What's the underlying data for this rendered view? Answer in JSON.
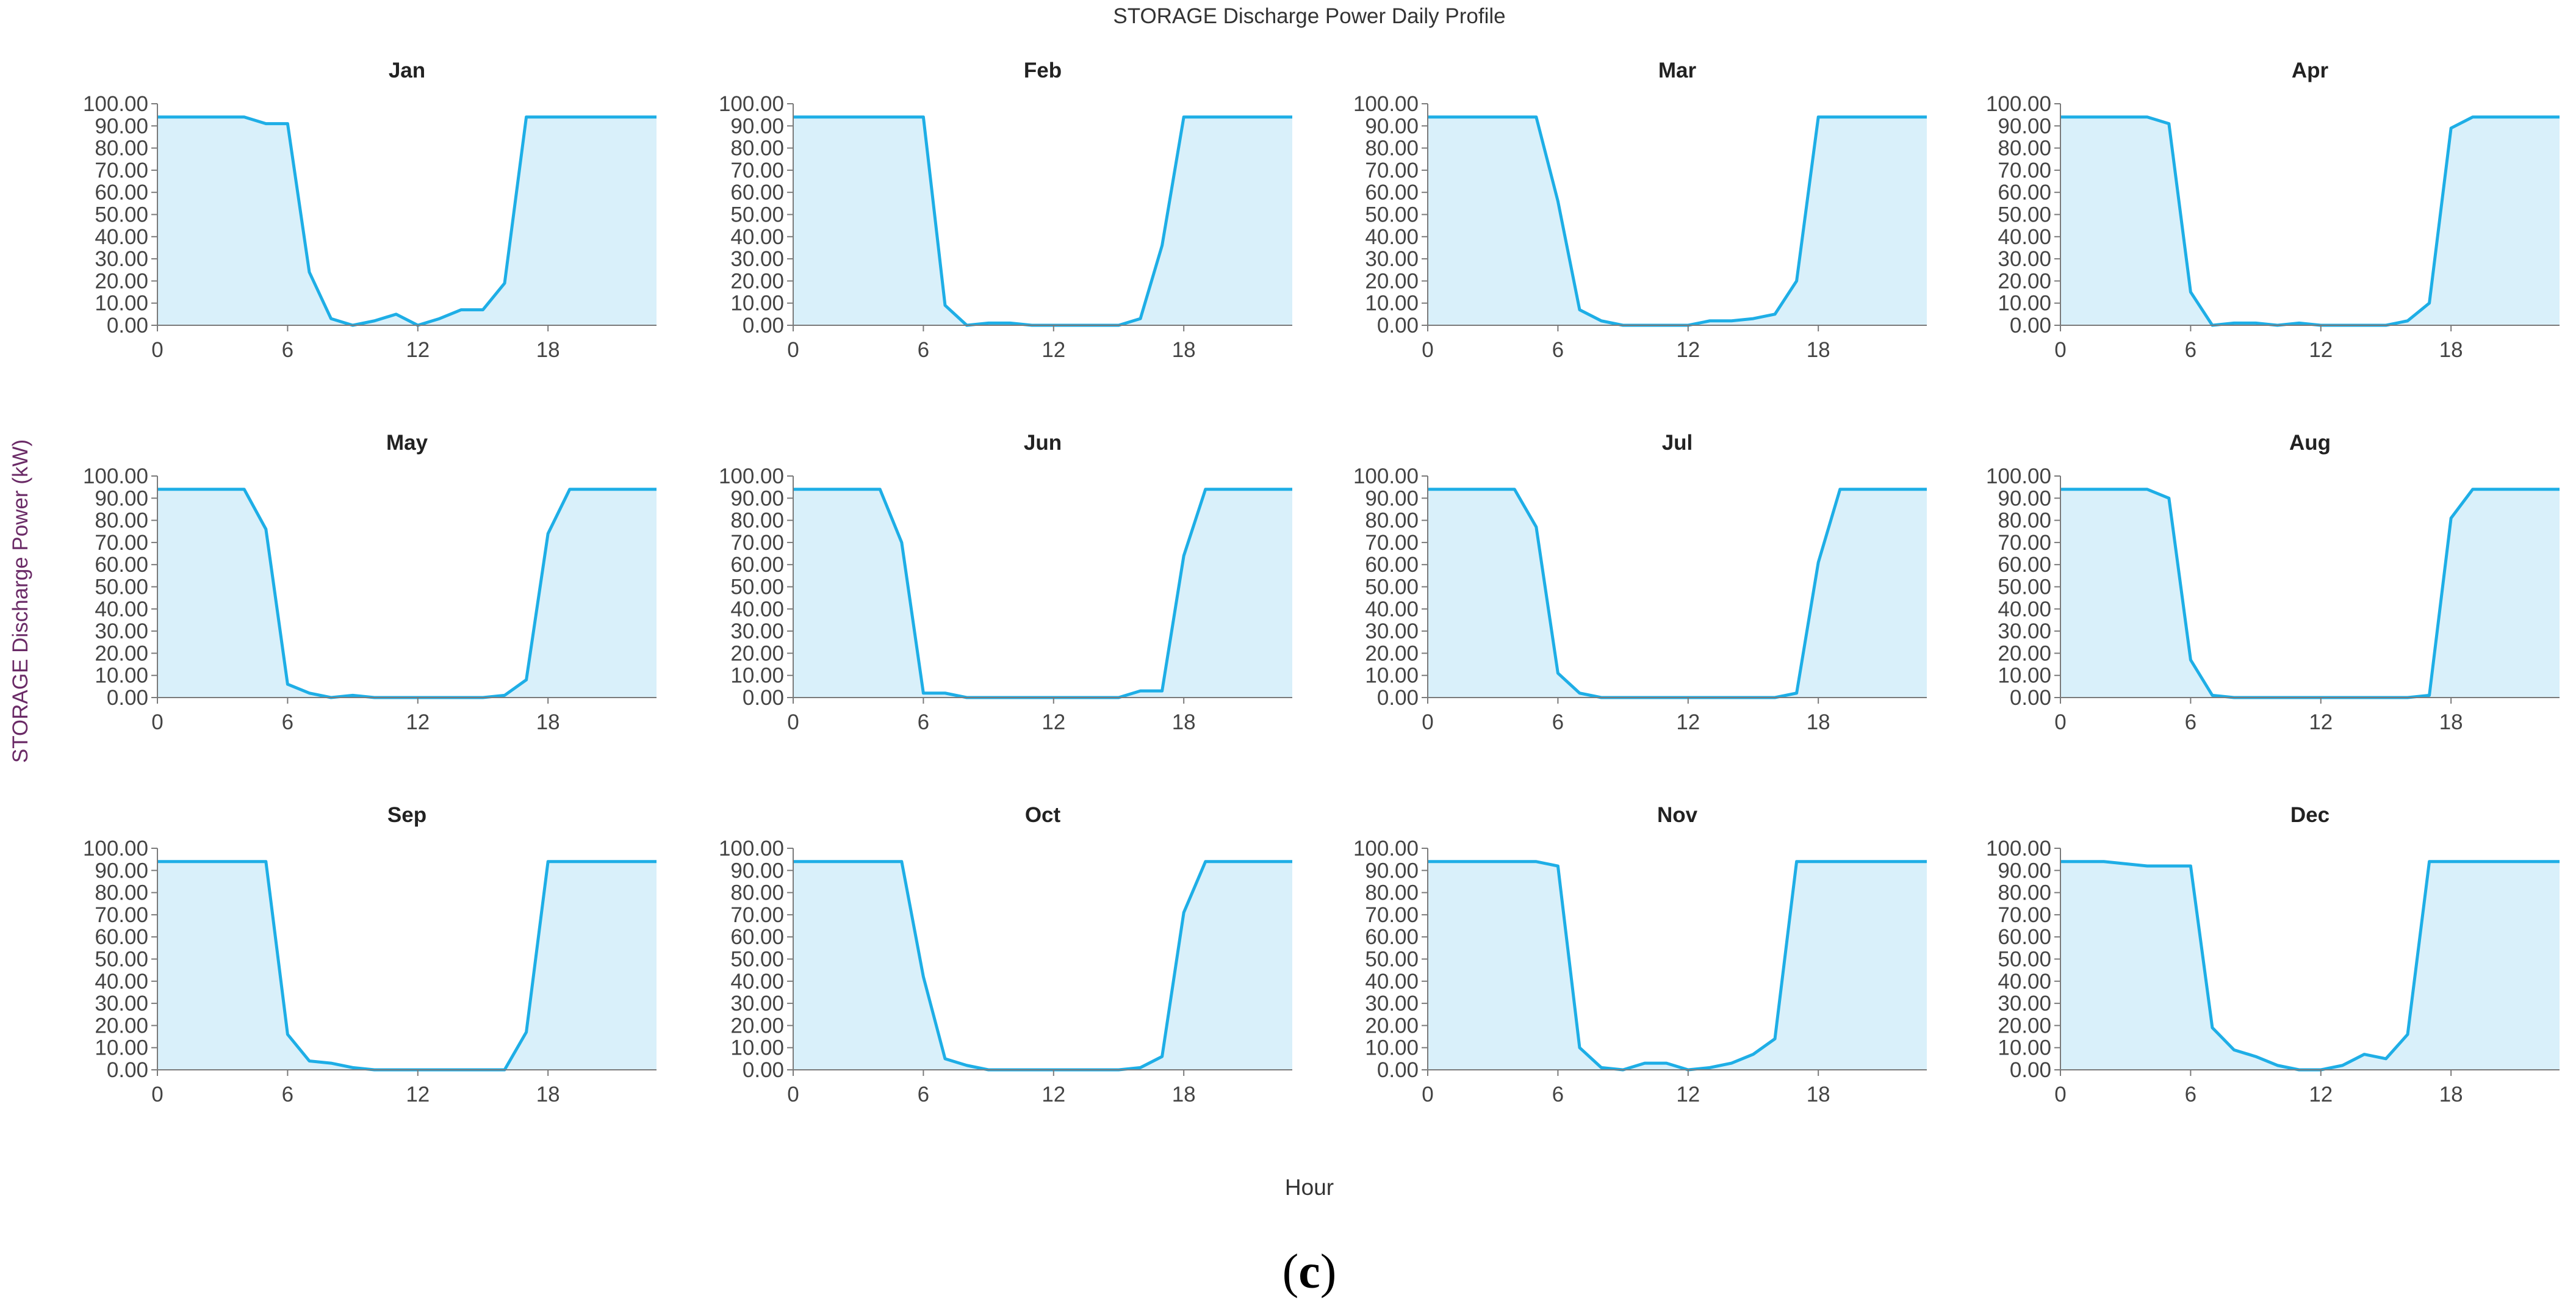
{
  "chart_data": {
    "type": "area",
    "title": "STORAGE Discharge Power Daily Profile",
    "xlabel": "Hour",
    "ylabel": "STORAGE Discharge Power (kW)",
    "caption": {
      "open": "(",
      "letter": "c",
      "close": ")"
    },
    "xlim": [
      0,
      23
    ],
    "ylim": [
      0,
      100
    ],
    "x_ticks": [
      "0",
      "6",
      "12",
      "18"
    ],
    "y_ticks": [
      "0.00",
      "10.00",
      "20.00",
      "30.00",
      "40.00",
      "50.00",
      "60.00",
      "70.00",
      "80.00",
      "90.00",
      "100.00"
    ],
    "grid": false,
    "colors": {
      "line": "#1eaee6",
      "fill": "#d9f0fa",
      "axis": "#7a7a7a"
    },
    "x": [
      0,
      1,
      2,
      3,
      4,
      5,
      6,
      7,
      8,
      9,
      10,
      11,
      12,
      13,
      14,
      15,
      16,
      17,
      18,
      19,
      20,
      21,
      22,
      23
    ],
    "panels": [
      {
        "name": "Jan",
        "values": [
          94,
          94,
          94,
          94,
          94,
          91,
          91,
          24,
          3,
          0,
          2,
          5,
          0,
          3,
          7,
          7,
          19,
          94,
          94,
          94,
          94,
          94,
          94,
          94
        ]
      },
      {
        "name": "Feb",
        "values": [
          94,
          94,
          94,
          94,
          94,
          94,
          94,
          9,
          0,
          1,
          1,
          0,
          0,
          0,
          0,
          0,
          3,
          36,
          94,
          94,
          94,
          94,
          94,
          94
        ]
      },
      {
        "name": "Mar",
        "values": [
          94,
          94,
          94,
          94,
          94,
          94,
          56,
          7,
          2,
          0,
          0,
          0,
          0,
          2,
          2,
          3,
          5,
          20,
          94,
          94,
          94,
          94,
          94,
          94
        ]
      },
      {
        "name": "Apr",
        "values": [
          94,
          94,
          94,
          94,
          94,
          91,
          15,
          0,
          1,
          1,
          0,
          1,
          0,
          0,
          0,
          0,
          2,
          10,
          89,
          94,
          94,
          94,
          94,
          94
        ]
      },
      {
        "name": "May",
        "values": [
          94,
          94,
          94,
          94,
          94,
          76,
          6,
          2,
          0,
          1,
          0,
          0,
          0,
          0,
          0,
          0,
          1,
          8,
          74,
          94,
          94,
          94,
          94,
          94
        ]
      },
      {
        "name": "Jun",
        "values": [
          94,
          94,
          94,
          94,
          94,
          70,
          2,
          2,
          0,
          0,
          0,
          0,
          0,
          0,
          0,
          0,
          3,
          3,
          64,
          94,
          94,
          94,
          94,
          94
        ]
      },
      {
        "name": "Jul",
        "values": [
          94,
          94,
          94,
          94,
          94,
          77,
          11,
          2,
          0,
          0,
          0,
          0,
          0,
          0,
          0,
          0,
          0,
          2,
          61,
          94,
          94,
          94,
          94,
          94
        ]
      },
      {
        "name": "Aug",
        "values": [
          94,
          94,
          94,
          94,
          94,
          90,
          17,
          1,
          0,
          0,
          0,
          0,
          0,
          0,
          0,
          0,
          0,
          1,
          81,
          94,
          94,
          94,
          94,
          94
        ]
      },
      {
        "name": "Sep",
        "values": [
          94,
          94,
          94,
          94,
          94,
          94,
          16,
          4,
          3,
          1,
          0,
          0,
          0,
          0,
          0,
          0,
          0,
          17,
          94,
          94,
          94,
          94,
          94,
          94
        ]
      },
      {
        "name": "Oct",
        "values": [
          94,
          94,
          94,
          94,
          94,
          94,
          42,
          5,
          2,
          0,
          0,
          0,
          0,
          0,
          0,
          0,
          1,
          6,
          71,
          94,
          94,
          94,
          94,
          94
        ]
      },
      {
        "name": "Nov",
        "values": [
          94,
          94,
          94,
          94,
          94,
          94,
          92,
          10,
          1,
          0,
          3,
          3,
          0,
          1,
          3,
          7,
          14,
          94,
          94,
          94,
          94,
          94,
          94,
          94
        ]
      },
      {
        "name": "Dec",
        "values": [
          94,
          94,
          94,
          93,
          92,
          92,
          92,
          19,
          9,
          6,
          2,
          0,
          0,
          2,
          7,
          5,
          16,
          94,
          94,
          94,
          94,
          94,
          94,
          94
        ]
      }
    ]
  }
}
